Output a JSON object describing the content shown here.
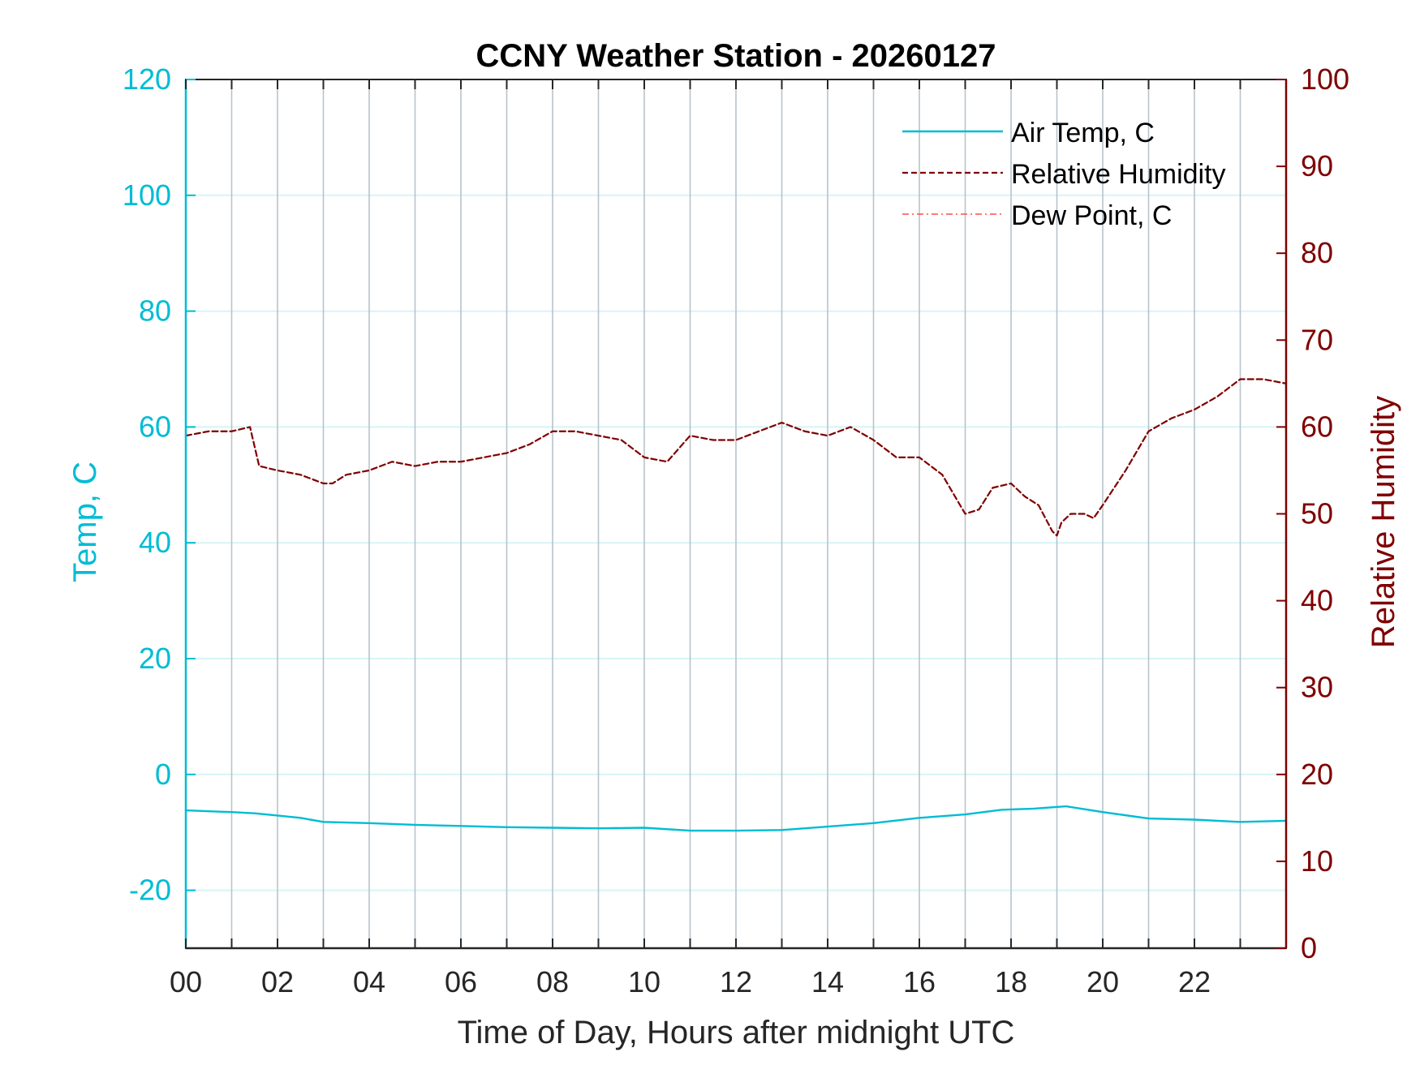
{
  "chart_data": {
    "type": "line",
    "title": "CCNY Weather Station - 20260127",
    "xlabel": "Time of Day, Hours after midnight UTC",
    "ylabel_left": "Temp, C",
    "ylabel_right": "Relative Humidity",
    "xlim": [
      0,
      24
    ],
    "ylim_left": [
      -30,
      120
    ],
    "ylim_right": [
      0,
      100
    ],
    "x_ticks": [
      0,
      2,
      4,
      6,
      8,
      10,
      12,
      14,
      16,
      18,
      20,
      22
    ],
    "x_tick_labels": [
      "00",
      "02",
      "04",
      "06",
      "08",
      "10",
      "12",
      "14",
      "16",
      "18",
      "20",
      "22"
    ],
    "x_minor_grid": [
      0,
      1,
      2,
      3,
      4,
      5,
      6,
      7,
      8,
      9,
      10,
      11,
      12,
      13,
      14,
      15,
      16,
      17,
      18,
      19,
      20,
      21,
      22,
      23
    ],
    "left_ticks": [
      -20,
      0,
      20,
      40,
      60,
      80,
      100,
      120
    ],
    "left_tick_labels": [
      "-20",
      "0",
      "20",
      "40",
      "60",
      "80",
      "100",
      "120"
    ],
    "right_ticks": [
      0,
      10,
      20,
      30,
      40,
      50,
      60,
      70,
      80,
      90,
      100
    ],
    "right_tick_labels": [
      "0",
      "10",
      "20",
      "30",
      "40",
      "50",
      "60",
      "70",
      "80",
      "90",
      "100"
    ],
    "legend_position": "top-right",
    "colors": {
      "temp": "#00bcd4",
      "rh": "#7f0000",
      "dew": "#ff4d4d",
      "axis_left": "#00bcd4",
      "axis_right": "#7f0000",
      "grid_v": "#b8c3cc",
      "grid_h": "#d8f3f7",
      "frame": "#262626"
    },
    "series": [
      {
        "name": "Air Temp, C",
        "axis": "left",
        "style": "solid",
        "x": [
          0,
          1,
          1.5,
          2,
          2.5,
          3,
          3.5,
          4,
          5,
          6,
          7,
          8,
          9,
          10,
          11,
          12,
          13,
          14,
          15,
          16,
          17,
          17.8,
          18.5,
          19.2,
          20,
          21,
          22,
          23,
          24
        ],
        "y": [
          -6.2,
          -6.5,
          -6.7,
          -7.1,
          -7.5,
          -8.2,
          -8.3,
          -8.4,
          -8.7,
          -8.9,
          -9.1,
          -9.2,
          -9.3,
          -9.2,
          -9.7,
          -9.7,
          -9.6,
          -9.0,
          -8.4,
          -7.5,
          -6.9,
          -6.1,
          -5.9,
          -5.5,
          -6.5,
          -7.6,
          -7.8,
          -8.2,
          -8.0
        ]
      },
      {
        "name": "Relative Humidity",
        "axis": "right",
        "style": "dashed",
        "x": [
          0,
          0.5,
          1.0,
          1.4,
          1.6,
          2.0,
          2.5,
          3.0,
          3.2,
          3.5,
          4.0,
          4.5,
          5.0,
          5.5,
          6.0,
          6.5,
          7.0,
          7.5,
          8.0,
          8.5,
          9.0,
          9.5,
          10.0,
          10.5,
          11.0,
          11.5,
          12.0,
          12.5,
          13.0,
          13.5,
          14.0,
          14.5,
          15.0,
          15.5,
          16.0,
          16.5,
          17.0,
          17.3,
          17.6,
          18.0,
          18.3,
          18.6,
          18.9,
          19.0,
          19.1,
          19.3,
          19.6,
          19.8,
          20.0,
          20.5,
          21.0,
          21.5,
          22.0,
          22.5,
          23.0,
          23.5,
          24.0
        ],
        "y": [
          59,
          59.5,
          59.5,
          60,
          55.5,
          55,
          54.5,
          53.5,
          53.5,
          54.5,
          55,
          56,
          55.5,
          56,
          56,
          56.5,
          57,
          58,
          59.5,
          59.5,
          59,
          58.5,
          56.5,
          56,
          59,
          58.5,
          58.5,
          59.5,
          60.5,
          59.5,
          59,
          60,
          58.5,
          56.5,
          56.5,
          54.5,
          50,
          50.5,
          53,
          53.5,
          52,
          51,
          48,
          47.5,
          49,
          50,
          50,
          49.5,
          51,
          55,
          59.5,
          61,
          62,
          63.5,
          65.5,
          65.5,
          65
        ]
      },
      {
        "name": "Dew Point, C",
        "axis": "left",
        "style": "dash-dot",
        "x": [],
        "y": []
      }
    ],
    "legend": [
      {
        "label": "Air Temp, C",
        "style": "solid",
        "color": "#00bcd4"
      },
      {
        "label": "Relative Humidity",
        "style": "dashed",
        "color": "#7f0000"
      },
      {
        "label": "Dew Point, C",
        "style": "dash-dot",
        "color": "#ff4d4d"
      }
    ]
  }
}
